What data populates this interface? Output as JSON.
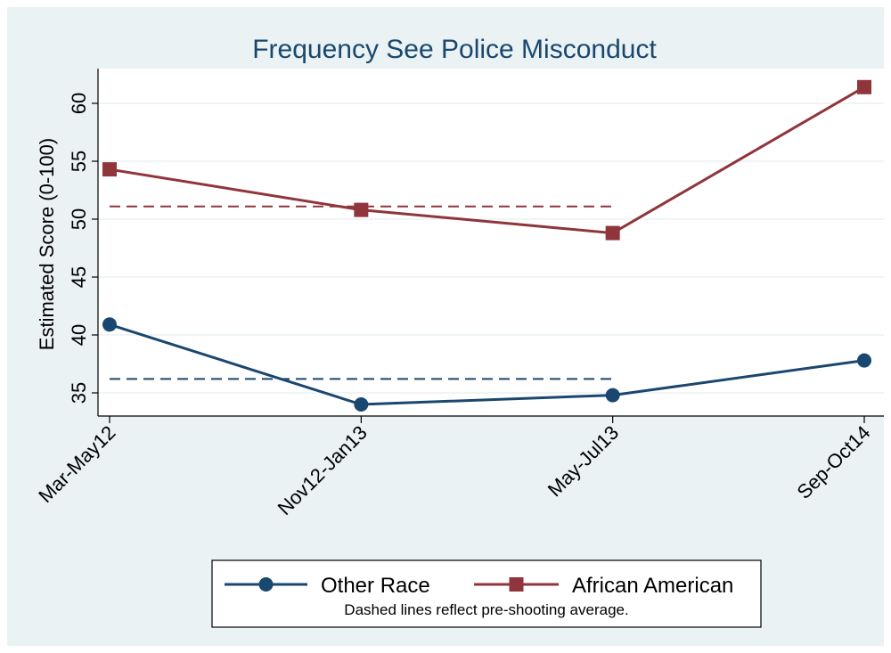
{
  "chart_data": {
    "type": "line",
    "title": "Frequency See Police Misconduct",
    "ylabel": "Estimated Score (0-100)",
    "xlabel": "",
    "categories": [
      "Mar-May12",
      "Nov12-Jan13",
      "May-Jul13",
      "Sep-Oct14"
    ],
    "y_ticks": [
      35,
      40,
      45,
      50,
      55,
      60
    ],
    "ylim": [
      33,
      63
    ],
    "grid": true,
    "series": [
      {
        "name": "Other Race",
        "values": [
          40.9,
          34.0,
          34.8,
          37.8
        ],
        "color": "#1a476f",
        "marker": "circle"
      },
      {
        "name": "African American",
        "values": [
          54.3,
          50.8,
          48.8,
          61.4
        ],
        "color": "#90353b",
        "marker": "square"
      }
    ],
    "reference_lines": [
      {
        "series": "Other Race",
        "value": 36.2,
        "from_category": 0,
        "to_category": 2,
        "style": "dashed",
        "color": "#1a476f"
      },
      {
        "series": "African American",
        "value": 51.1,
        "from_category": 0,
        "to_category": 2,
        "style": "dashed",
        "color": "#90353b"
      }
    ],
    "legend_note": "Dashed lines reflect pre-shooting average.",
    "legend_position": "bottom",
    "colors": {
      "outer_background": "#eaf2f3",
      "plot_background": "#ffffff",
      "title": "#1a476f",
      "grid": "#eaf2f3"
    }
  }
}
